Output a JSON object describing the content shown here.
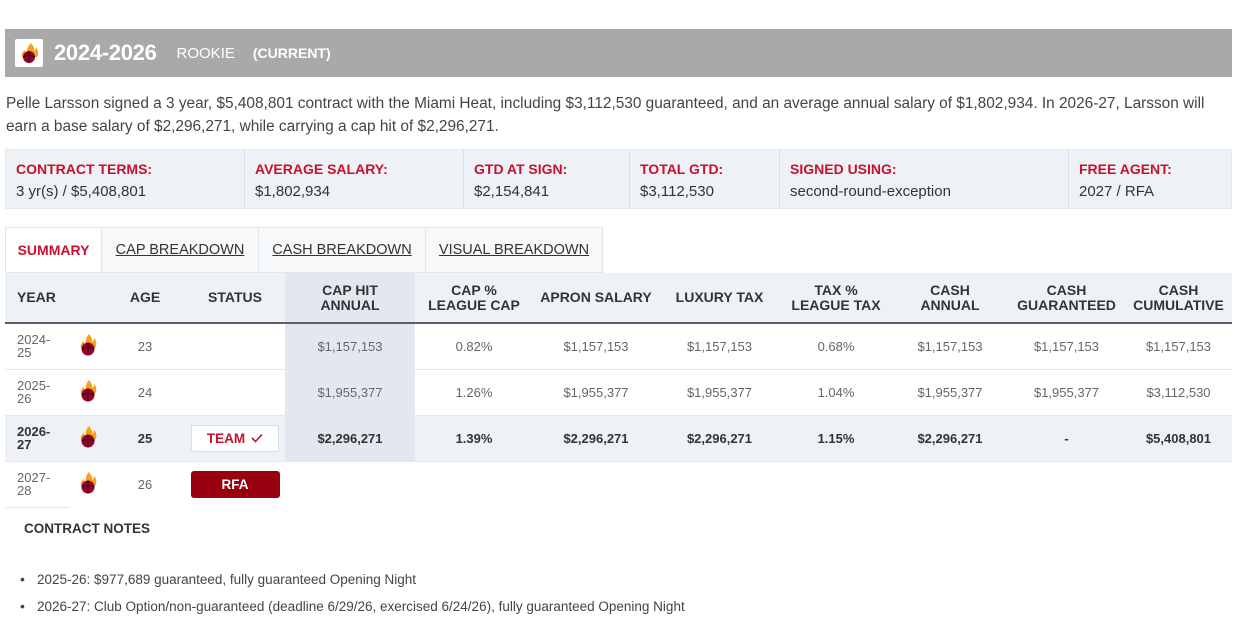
{
  "header": {
    "years": "2024-2026",
    "type": "ROOKIE",
    "current": "(CURRENT)",
    "logo_icon": "miami-heat-logo"
  },
  "description": "Pelle Larsson signed a 3 year, $5,408,801 contract with the Miami Heat, including $3,112,530 guaranteed, and an average annual salary of $1,802,934. In 2026-27, Larsson will earn a base salary of $2,296,271, while carrying a cap hit of $2,296,271.",
  "terms": [
    {
      "label": "CONTRACT TERMS:",
      "value": "3 yr(s) / $5,408,801"
    },
    {
      "label": "AVERAGE SALARY:",
      "value": "$1,802,934"
    },
    {
      "label": "GTD AT SIGN:",
      "value": "$2,154,841"
    },
    {
      "label": "TOTAL GTD:",
      "value": "$3,112,530"
    },
    {
      "label": "SIGNED USING:",
      "value": "second-round-exception"
    },
    {
      "label": "FREE AGENT:",
      "value": "2027 / RFA"
    }
  ],
  "tabs": [
    {
      "label": "SUMMARY",
      "active": true
    },
    {
      "label": "CAP BREAKDOWN",
      "active": false
    },
    {
      "label": "CASH BREAKDOWN",
      "active": false
    },
    {
      "label": "VISUAL BREAKDOWN",
      "active": false
    }
  ],
  "table": {
    "headers": {
      "year": "YEAR",
      "age": "AGE",
      "status": "STATUS",
      "cap_hit_1": "CAP HIT",
      "cap_hit_2": "ANNUAL",
      "cap_pct_1": "CAP %",
      "cap_pct_2": "LEAGUE CAP",
      "apron": "APRON SALARY",
      "luxury": "LUXURY TAX",
      "tax_pct_1": "TAX %",
      "tax_pct_2": "LEAGUE TAX",
      "cash_annual_1": "CASH",
      "cash_annual_2": "ANNUAL",
      "cash_gtd_1": "CASH",
      "cash_gtd_2": "GUARANTEED",
      "cash_cum_1": "CASH",
      "cash_cum_2": "CUMULATIVE"
    },
    "rows": [
      {
        "year_a": "2024-",
        "year_b": "25",
        "age": "23",
        "status": "",
        "cap_hit": "$1,157,153",
        "cap_pct": "0.82%",
        "apron": "$1,157,153",
        "luxury": "$1,157,153",
        "tax_pct": "0.68%",
        "cash_annual": "$1,157,153",
        "cash_gtd": "$1,157,153",
        "cash_cum": "$1,157,153"
      },
      {
        "year_a": "2025-",
        "year_b": "26",
        "age": "24",
        "status": "",
        "cap_hit": "$1,955,377",
        "cap_pct": "1.26%",
        "apron": "$1,955,377",
        "luxury": "$1,955,377",
        "tax_pct": "1.04%",
        "cash_annual": "$1,955,377",
        "cash_gtd": "$1,955,377",
        "cash_cum": "$3,112,530"
      },
      {
        "year_a": "2026-",
        "year_b": "27",
        "age": "25",
        "status": "TEAM",
        "cap_hit": "$2,296,271",
        "cap_pct": "1.39%",
        "apron": "$2,296,271",
        "luxury": "$2,296,271",
        "tax_pct": "1.15%",
        "cash_annual": "$2,296,271",
        "cash_gtd": "-",
        "cash_cum": "$5,408,801"
      },
      {
        "year_a": "2027-",
        "year_b": "28",
        "age": "26",
        "status": "RFA"
      }
    ]
  },
  "notes": {
    "title": "CONTRACT NOTES",
    "items": [
      "2025-26: $977,689 guaranteed, fully guaranteed Opening Night",
      "2026-27: Club Option/non-guaranteed (deadline 6/29/26, exercised 6/24/26), fully guaranteed Opening Night"
    ]
  },
  "colors": {
    "accent_red": "#c8102e",
    "rfa_red": "#98000f",
    "header_gray": "#a9a9a9"
  }
}
